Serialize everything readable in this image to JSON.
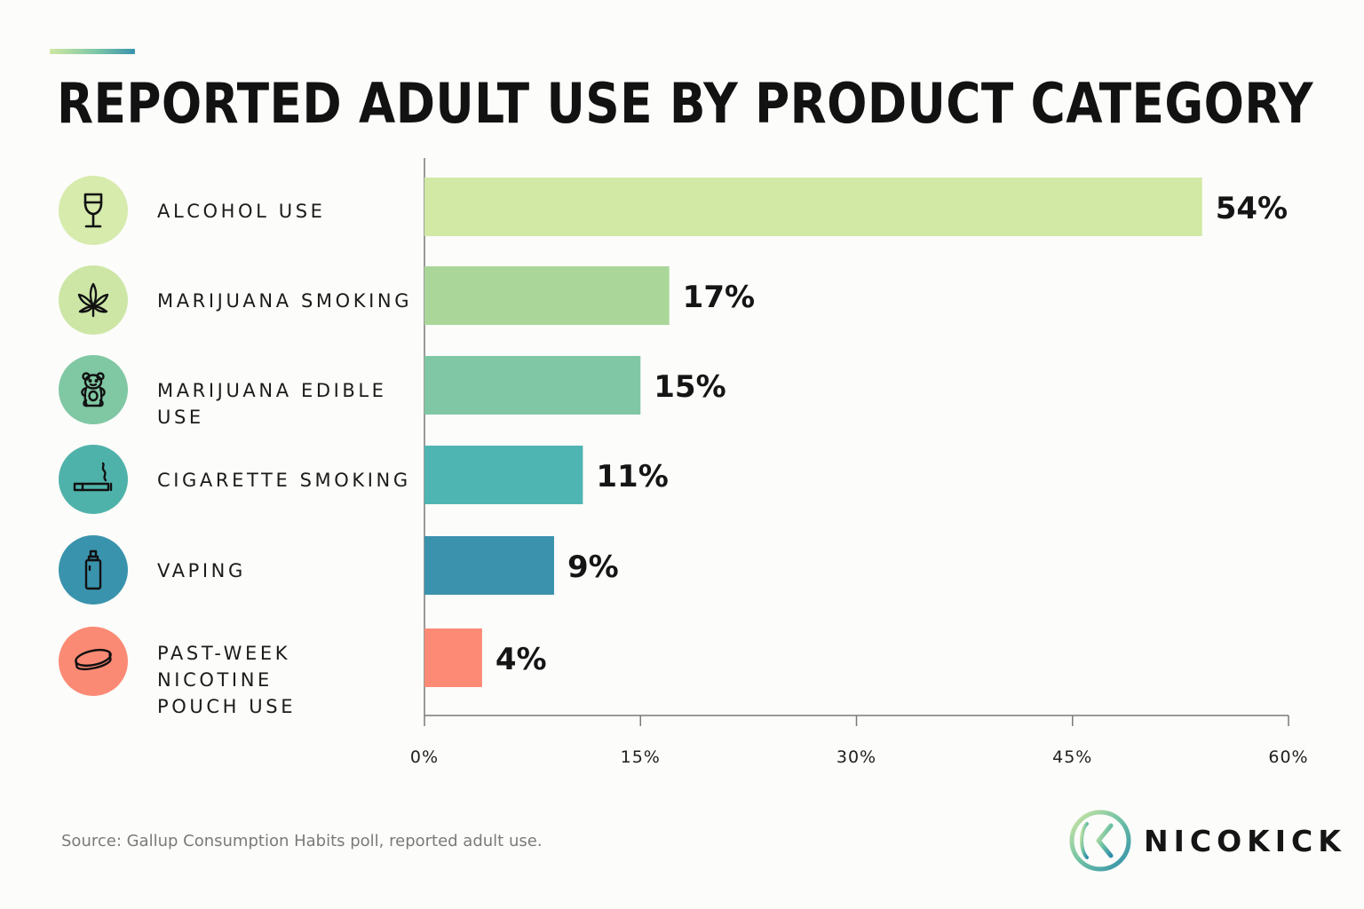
{
  "header": {
    "title": "REPORTED ADULT USE BY PRODUCT CATEGORY"
  },
  "chart_data": {
    "type": "bar",
    "orientation": "horizontal",
    "title": "REPORTED ADULT USE BY PRODUCT CATEGORY",
    "categories": [
      "ALCOHOL USE",
      "MARIJUANA SMOKING",
      "MARIJUANA EDIBLE USE",
      "CIGARETTE SMOKING",
      "VAPING",
      "PAST-WEEK NICOTINE\nPOUCH USE"
    ],
    "values": [
      54,
      17,
      15,
      11,
      9,
      4
    ],
    "value_labels": [
      "54%",
      "17%",
      "15%",
      "11%",
      "9%",
      "4%"
    ],
    "xlim": [
      0,
      60
    ],
    "x_ticks": [
      0,
      15,
      30,
      45,
      60
    ],
    "x_tick_labels": [
      "0%",
      "15%",
      "30%",
      "45%",
      "60%"
    ],
    "grid": false,
    "bar_colors": [
      "#d2e9a5",
      "#aad69a",
      "#80c7a5",
      "#4fb5b2",
      "#3a92ac",
      "#fc8a74"
    ]
  },
  "icons": [
    {
      "name": "wine-glass-icon",
      "bg": "#d6ebac"
    },
    {
      "name": "cannabis-leaf-icon",
      "bg": "#cde6a6"
    },
    {
      "name": "gummy-bear-icon",
      "bg": "#80c7a4"
    },
    {
      "name": "cigarette-icon",
      "bg": "#4fb2aa"
    },
    {
      "name": "vape-icon",
      "bg": "#3a93ad"
    },
    {
      "name": "nicotine-pouch-icon",
      "bg": "#fb8a74"
    }
  ],
  "footer": {
    "source": "Source: Gallup Consumption Habits poll, reported adult use.",
    "brand_name": "NICOKICK"
  }
}
